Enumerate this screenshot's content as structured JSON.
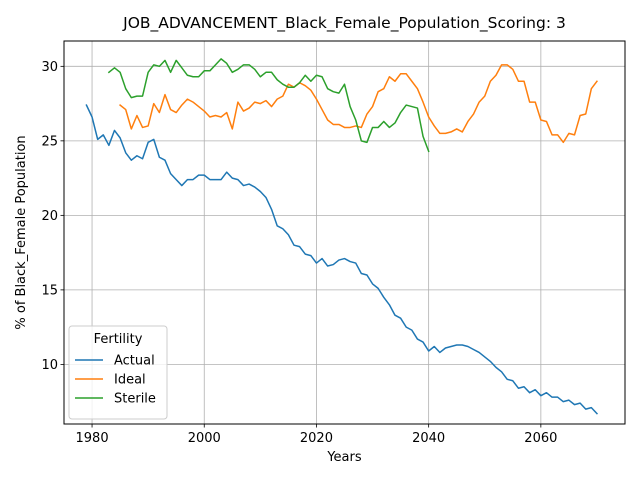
{
  "chart_data": {
    "type": "line",
    "title": "JOB_ADVANCEMENT_Black_Female_Population_Scoring: 3",
    "xlabel": "Years",
    "ylabel": "% of Black_Female Population",
    "xlim": [
      1975,
      2075
    ],
    "ylim": [
      6.0,
      31.7
    ],
    "xticks": [
      1980,
      2000,
      2020,
      2040,
      2060
    ],
    "yticks": [
      10,
      15,
      20,
      25,
      30
    ],
    "grid": true,
    "legend": {
      "title": "Fertility",
      "placement": "lower-left"
    },
    "series": [
      {
        "name": "Actual",
        "color": "#1f77b4",
        "x": [
          1979,
          1980,
          1981,
          1982,
          1983,
          1984,
          1985,
          1986,
          1987,
          1988,
          1989,
          1990,
          1991,
          1992,
          1993,
          1994,
          1995,
          1996,
          1997,
          1998,
          1999,
          2000,
          2001,
          2002,
          2003,
          2004,
          2005,
          2006,
          2007,
          2008,
          2009,
          2010,
          2011,
          2012,
          2013,
          2014,
          2015,
          2016,
          2017,
          2018,
          2019,
          2020,
          2021,
          2022,
          2023,
          2024,
          2025,
          2026,
          2027,
          2028,
          2029,
          2030,
          2031,
          2032,
          2033,
          2034,
          2035,
          2036,
          2037,
          2038,
          2039,
          2040,
          2041,
          2042,
          2043,
          2044,
          2045,
          2046,
          2047,
          2048,
          2049,
          2050,
          2051,
          2052,
          2053,
          2054,
          2055,
          2056,
          2057,
          2058,
          2059,
          2060,
          2061,
          2062,
          2063,
          2064,
          2065,
          2066,
          2067,
          2068,
          2069,
          2070
        ],
        "y": [
          27.4,
          26.6,
          25.1,
          25.4,
          24.7,
          25.7,
          25.2,
          24.2,
          23.7,
          24.0,
          23.8,
          24.9,
          25.1,
          23.9,
          23.7,
          22.8,
          22.4,
          22.0,
          22.4,
          22.4,
          22.7,
          22.7,
          22.4,
          22.4,
          22.4,
          22.9,
          22.5,
          22.4,
          22.0,
          22.1,
          21.9,
          21.6,
          21.2,
          20.4,
          19.3,
          19.1,
          18.7,
          18.0,
          17.9,
          17.4,
          17.3,
          16.8,
          17.1,
          16.6,
          16.7,
          17.0,
          17.1,
          16.9,
          16.8,
          16.1,
          16.0,
          15.4,
          15.1,
          14.5,
          14.0,
          13.3,
          13.1,
          12.5,
          12.3,
          11.7,
          11.5,
          10.9,
          11.2,
          10.8,
          11.1,
          11.2,
          11.3,
          11.3,
          11.2,
          11.0,
          10.8,
          10.5,
          10.2,
          9.8,
          9.5,
          9.0,
          8.9,
          8.4,
          8.5,
          8.1,
          8.3,
          7.9,
          8.1,
          7.8,
          7.8,
          7.5,
          7.6,
          7.3,
          7.4,
          7.0,
          7.1,
          6.7
        ]
      },
      {
        "name": "Ideal",
        "color": "#ff7f0e",
        "x": [
          1985,
          1986,
          1987,
          1988,
          1989,
          1990,
          1991,
          1992,
          1993,
          1994,
          1995,
          1996,
          1997,
          1998,
          1999,
          2000,
          2001,
          2002,
          2003,
          2004,
          2005,
          2006,
          2007,
          2008,
          2009,
          2010,
          2011,
          2012,
          2013,
          2014,
          2015,
          2016,
          2017,
          2018,
          2019,
          2020,
          2021,
          2022,
          2023,
          2024,
          2025,
          2026,
          2027,
          2028,
          2029,
          2030,
          2031,
          2032,
          2033,
          2034,
          2035,
          2036,
          2037,
          2038,
          2039,
          2040,
          2041,
          2042,
          2043,
          2044,
          2045,
          2046,
          2047,
          2048,
          2049,
          2050,
          2051,
          2052,
          2053,
          2054,
          2055,
          2056,
          2057,
          2058,
          2059,
          2060,
          2061,
          2062,
          2063,
          2064,
          2065,
          2066,
          2067,
          2068,
          2069,
          2070
        ],
        "y": [
          27.4,
          27.1,
          25.8,
          26.7,
          25.9,
          26.0,
          27.5,
          26.9,
          28.1,
          27.1,
          26.9,
          27.4,
          27.8,
          27.6,
          27.3,
          27.0,
          26.6,
          26.7,
          26.6,
          26.9,
          25.8,
          27.6,
          27.0,
          27.2,
          27.6,
          27.5,
          27.7,
          27.3,
          27.8,
          28.0,
          28.8,
          28.6,
          28.9,
          28.7,
          28.4,
          27.8,
          27.1,
          26.4,
          26.1,
          26.1,
          25.9,
          25.9,
          26.0,
          25.9,
          26.8,
          27.3,
          28.3,
          28.5,
          29.3,
          29.0,
          29.5,
          29.5,
          29.0,
          28.5,
          27.6,
          26.6,
          26.0,
          25.5,
          25.5,
          25.6,
          25.8,
          25.6,
          26.3,
          26.8,
          27.6,
          28.0,
          29.0,
          29.4,
          30.1,
          30.1,
          29.8,
          29.0,
          29.0,
          27.6,
          27.6,
          26.4,
          26.3,
          25.4,
          25.4,
          24.9,
          25.5,
          25.4,
          26.7,
          26.8,
          28.5,
          29.0
        ]
      },
      {
        "name": "Sterile",
        "color": "#2ca02c",
        "x": [
          1983,
          1984,
          1985,
          1986,
          1987,
          1988,
          1989,
          1990,
          1991,
          1992,
          1993,
          1994,
          1995,
          1996,
          1997,
          1998,
          1999,
          2000,
          2001,
          2002,
          2003,
          2004,
          2005,
          2006,
          2007,
          2008,
          2009,
          2010,
          2011,
          2012,
          2013,
          2014,
          2015,
          2016,
          2017,
          2018,
          2019,
          2020,
          2021,
          2022,
          2023,
          2024,
          2025,
          2026,
          2027,
          2028,
          2029,
          2030,
          2031,
          2032,
          2033,
          2034,
          2035,
          2036,
          2037,
          2038,
          2039,
          2040
        ],
        "y": [
          29.6,
          29.9,
          29.6,
          28.5,
          27.9,
          28.0,
          28.0,
          29.6,
          30.1,
          30.0,
          30.4,
          29.6,
          30.4,
          29.9,
          29.4,
          29.3,
          29.3,
          29.7,
          29.7,
          30.1,
          30.5,
          30.2,
          29.6,
          29.8,
          30.1,
          30.1,
          29.8,
          29.3,
          29.6,
          29.6,
          29.1,
          28.8,
          28.6,
          28.6,
          28.9,
          29.4,
          29.0,
          29.4,
          29.3,
          28.5,
          28.3,
          28.2,
          28.8,
          27.3,
          26.4,
          25.0,
          24.9,
          25.9,
          25.9,
          26.3,
          25.9,
          26.2,
          26.9,
          27.4,
          27.3,
          27.2,
          25.3,
          24.3
        ]
      }
    ]
  }
}
